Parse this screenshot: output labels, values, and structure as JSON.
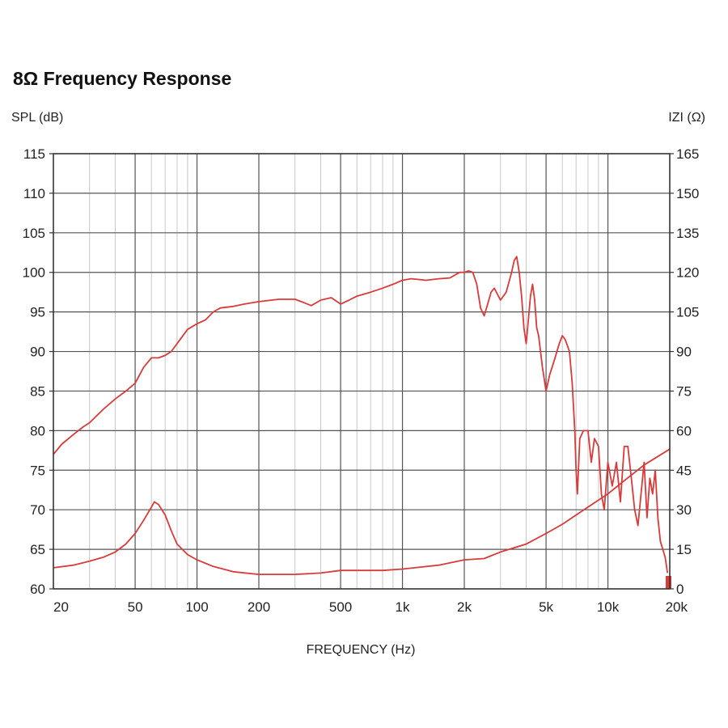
{
  "title": "8Ω Frequency Response",
  "chart_data": {
    "type": "line",
    "xscale": "log",
    "xlim": [
      20,
      20000
    ],
    "ylim": [
      60,
      115
    ],
    "y2lim": [
      0,
      165
    ],
    "xlabel": "FREQUENCY (Hz)",
    "ylabel": "SPL (dB)",
    "y2label": "IZI (Ω)",
    "grid": true,
    "x_ticks": [
      {
        "value": 20,
        "label": "20"
      },
      {
        "value": 50,
        "label": "50"
      },
      {
        "value": 100,
        "label": "100"
      },
      {
        "value": 200,
        "label": "200"
      },
      {
        "value": 500,
        "label": "500"
      },
      {
        "value": 1000,
        "label": "1k"
      },
      {
        "value": 2000,
        "label": "2k"
      },
      {
        "value": 5000,
        "label": "5k"
      },
      {
        "value": 10000,
        "label": "10k"
      },
      {
        "value": 20000,
        "label": "20k"
      }
    ],
    "y_ticks": [
      {
        "value": 60,
        "label": "60"
      },
      {
        "value": 65,
        "label": "65"
      },
      {
        "value": 70,
        "label": "70"
      },
      {
        "value": 75,
        "label": "75"
      },
      {
        "value": 80,
        "label": "80"
      },
      {
        "value": 85,
        "label": "85"
      },
      {
        "value": 90,
        "label": "90"
      },
      {
        "value": 95,
        "label": "95"
      },
      {
        "value": 100,
        "label": "100"
      },
      {
        "value": 105,
        "label": "105"
      },
      {
        "value": 110,
        "label": "110"
      },
      {
        "value": 115,
        "label": "115"
      }
    ],
    "y2_ticks": [
      {
        "value": 0,
        "label": "0"
      },
      {
        "value": 15,
        "label": "15"
      },
      {
        "value": 30,
        "label": "30"
      },
      {
        "value": 45,
        "label": "45"
      },
      {
        "value": 60,
        "label": "60"
      },
      {
        "value": 75,
        "label": "75"
      },
      {
        "value": 90,
        "label": "90"
      },
      {
        "value": 105,
        "label": "105"
      },
      {
        "value": 120,
        "label": "120"
      },
      {
        "value": 135,
        "label": "135"
      },
      {
        "value": 150,
        "label": "150"
      },
      {
        "value": 165,
        "label": "165"
      }
    ],
    "series": [
      {
        "axis": "left",
        "color": "#d93a3a",
        "points": [
          [
            20,
            77
          ],
          [
            22,
            78.3
          ],
          [
            25,
            79.5
          ],
          [
            28,
            80.5
          ],
          [
            30,
            81
          ],
          [
            35,
            82.7
          ],
          [
            40,
            84
          ],
          [
            45,
            85
          ],
          [
            50,
            86
          ],
          [
            55,
            88
          ],
          [
            60,
            89.2
          ],
          [
            65,
            89.2
          ],
          [
            70,
            89.5
          ],
          [
            75,
            90
          ],
          [
            80,
            91
          ],
          [
            90,
            92.8
          ],
          [
            100,
            93.5
          ],
          [
            110,
            94
          ],
          [
            120,
            95
          ],
          [
            130,
            95.5
          ],
          [
            150,
            95.7
          ],
          [
            170,
            96
          ],
          [
            200,
            96.3
          ],
          [
            250,
            96.6
          ],
          [
            300,
            96.6
          ],
          [
            330,
            96.2
          ],
          [
            360,
            95.8
          ],
          [
            400,
            96.5
          ],
          [
            450,
            96.8
          ],
          [
            500,
            96
          ],
          [
            550,
            96.5
          ],
          [
            600,
            97
          ],
          [
            700,
            97.5
          ],
          [
            800,
            98
          ],
          [
            900,
            98.5
          ],
          [
            1000,
            99
          ],
          [
            1100,
            99.2
          ],
          [
            1200,
            99.1
          ],
          [
            1300,
            99
          ],
          [
            1500,
            99.2
          ],
          [
            1700,
            99.3
          ],
          [
            1900,
            100
          ],
          [
            2000,
            100
          ],
          [
            2100,
            100.2
          ],
          [
            2200,
            100
          ],
          [
            2300,
            98.5
          ],
          [
            2400,
            95.5
          ],
          [
            2500,
            94.5
          ],
          [
            2600,
            96
          ],
          [
            2700,
            97.5
          ],
          [
            2800,
            98
          ],
          [
            3000,
            96.5
          ],
          [
            3200,
            97.5
          ],
          [
            3400,
            100
          ],
          [
            3500,
            101.5
          ],
          [
            3600,
            102
          ],
          [
            3700,
            100
          ],
          [
            3800,
            97
          ],
          [
            3900,
            93
          ],
          [
            4000,
            91
          ],
          [
            4100,
            94
          ],
          [
            4200,
            97
          ],
          [
            4300,
            98.5
          ],
          [
            4400,
            96.5
          ],
          [
            4500,
            93
          ],
          [
            4600,
            92
          ],
          [
            4800,
            88
          ],
          [
            5000,
            85
          ],
          [
            5200,
            87
          ],
          [
            5500,
            89
          ],
          [
            5800,
            91
          ],
          [
            6000,
            92
          ],
          [
            6200,
            91.5
          ],
          [
            6500,
            90
          ],
          [
            6700,
            86
          ],
          [
            6900,
            80
          ],
          [
            7000,
            75
          ],
          [
            7100,
            72
          ],
          [
            7300,
            79
          ],
          [
            7600,
            80
          ],
          [
            8000,
            80
          ],
          [
            8300,
            76
          ],
          [
            8600,
            79
          ],
          [
            9000,
            78
          ],
          [
            9300,
            72
          ],
          [
            9600,
            70
          ],
          [
            10000,
            76
          ],
          [
            10500,
            73
          ],
          [
            11000,
            76
          ],
          [
            11500,
            71
          ],
          [
            12000,
            78
          ],
          [
            12500,
            78
          ],
          [
            13000,
            74
          ],
          [
            13500,
            70
          ],
          [
            14000,
            68
          ],
          [
            14500,
            72
          ],
          [
            15000,
            76
          ],
          [
            15500,
            69
          ],
          [
            16000,
            74
          ],
          [
            16500,
            72
          ],
          [
            17000,
            75
          ],
          [
            17500,
            69
          ],
          [
            18000,
            66
          ],
          [
            18500,
            65
          ],
          [
            19000,
            64
          ],
          [
            19500,
            62
          ]
        ]
      },
      {
        "axis": "right",
        "color": "#d93a3a",
        "points": [
          [
            20,
            8
          ],
          [
            25,
            9
          ],
          [
            30,
            10.5
          ],
          [
            35,
            12
          ],
          [
            40,
            14
          ],
          [
            45,
            17
          ],
          [
            50,
            21
          ],
          [
            55,
            26
          ],
          [
            60,
            31
          ],
          [
            62,
            33
          ],
          [
            65,
            32
          ],
          [
            70,
            28
          ],
          [
            75,
            22
          ],
          [
            80,
            17
          ],
          [
            90,
            13
          ],
          [
            100,
            11
          ],
          [
            120,
            8.5
          ],
          [
            150,
            6.5
          ],
          [
            200,
            5.5
          ],
          [
            300,
            5.5
          ],
          [
            400,
            6
          ],
          [
            500,
            7
          ],
          [
            600,
            7
          ],
          [
            800,
            7
          ],
          [
            1000,
            7.5
          ],
          [
            1500,
            9
          ],
          [
            2000,
            11
          ],
          [
            2500,
            11.5
          ],
          [
            3000,
            14
          ],
          [
            4000,
            17
          ],
          [
            5000,
            21
          ],
          [
            6000,
            24.5
          ],
          [
            8000,
            31
          ],
          [
            10000,
            36
          ],
          [
            12000,
            41
          ],
          [
            15000,
            47
          ],
          [
            20000,
            53
          ]
        ]
      }
    ]
  }
}
